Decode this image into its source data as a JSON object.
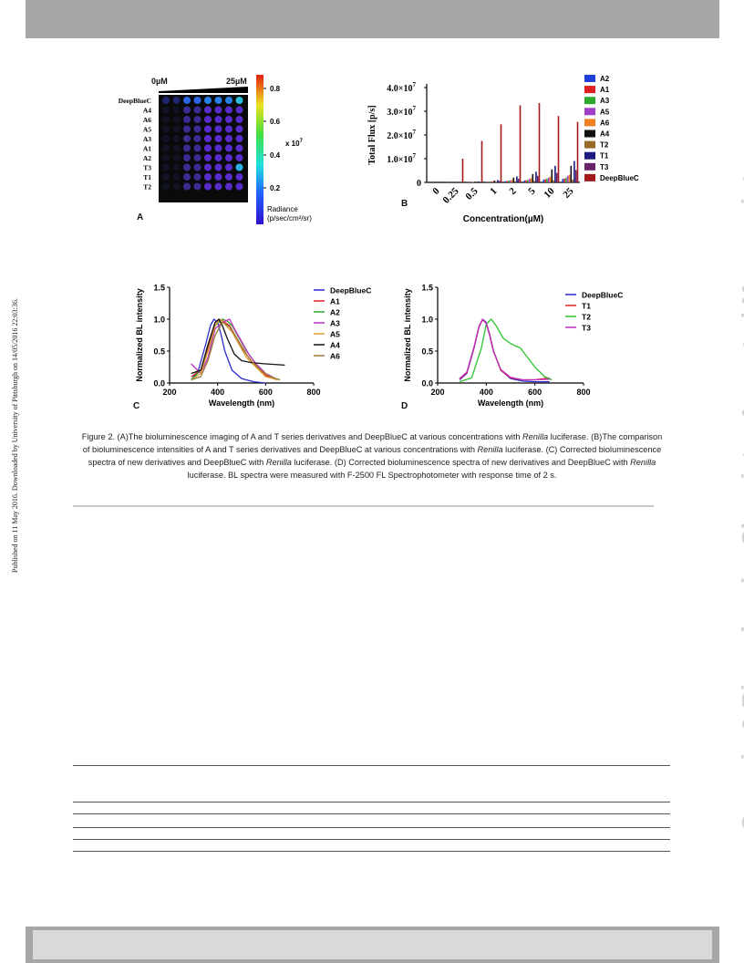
{
  "side_note": "Published on 11 May 2016. Downloaded by University of Pittsburgh on 14/05/2016 22:03:36.",
  "watermark": "Organic & Biomolecular Chemistry Accepted Manuscript",
  "figure": {
    "panel_a": {
      "label": "A",
      "conc_start": "0µM",
      "conc_end": "25µM",
      "rows": [
        "DeepBlueC",
        "A4",
        "A6",
        "A5",
        "A3",
        "A1",
        "A2",
        "T3",
        "T1",
        "T2"
      ],
      "colorbar_ticks": [
        "0.8",
        "0.6",
        "0.4",
        "0.2"
      ],
      "colorbar_exponent": "x 10",
      "colorbar_exponent_power": "7",
      "colorbar_label_1": "Radiance",
      "colorbar_label_2": "(p/sec/cm²/sr)"
    }
  },
  "chart_data": [
    {
      "panel": "B",
      "type": "bar",
      "ylabel": "Total Flux [p/s]",
      "xlabel": "Concentration(µM)",
      "ylim": [
        0,
        40000000
      ],
      "y_tick_labels": [
        "0",
        "1.0×10",
        "2.0×10",
        "3.0×10",
        "4.0×10"
      ],
      "y_tick_exponent": "7",
      "categories": [
        "0",
        "0.25",
        "0.5",
        "1",
        "2",
        "5",
        "10",
        "25"
      ],
      "series": [
        {
          "name": "A2",
          "color": "#1f3fd8",
          "values": [
            0,
            50000,
            100000,
            200000,
            500000,
            800000,
            1200000,
            1500000
          ]
        },
        {
          "name": "A1",
          "color": "#e02020",
          "values": [
            0,
            50000,
            100000,
            200000,
            600000,
            900000,
            1300000,
            1600000
          ]
        },
        {
          "name": "A3",
          "color": "#2ea82e",
          "values": [
            0,
            50000,
            100000,
            300000,
            700000,
            1000000,
            1600000,
            2000000
          ]
        },
        {
          "name": "A5",
          "color": "#a040c8",
          "values": [
            0,
            50000,
            150000,
            400000,
            900000,
            1500000,
            2000000,
            2800000
          ]
        },
        {
          "name": "A6",
          "color": "#f08020",
          "values": [
            0,
            50000,
            200000,
            500000,
            1100000,
            1800000,
            2500000,
            3200000
          ]
        },
        {
          "name": "A4",
          "color": "#111111",
          "values": [
            0,
            100000,
            300000,
            800000,
            2000000,
            3500000,
            5500000,
            7000000
          ]
        },
        {
          "name": "T2",
          "color": "#9a6a2a",
          "values": [
            0,
            50000,
            100000,
            200000,
            400000,
            700000,
            900000,
            1200000
          ]
        },
        {
          "name": "T1",
          "color": "#1a1a80",
          "values": [
            0,
            100000,
            400000,
            1000000,
            2500000,
            4500000,
            7000000,
            9000000
          ]
        },
        {
          "name": "T3",
          "color": "#6a1f6a",
          "values": [
            0,
            50000,
            200000,
            600000,
            1500000,
            2800000,
            4000000,
            5200000
          ]
        },
        {
          "name": "DeepBlueC",
          "color": "#a41a1a",
          "values": [
            0,
            10000000,
            17500000,
            24500000,
            32500000,
            33500000,
            28000000,
            25500000
          ]
        }
      ],
      "label": "B"
    },
    {
      "panel": "C",
      "type": "line",
      "ylabel": "Normalized BL intensity",
      "xlabel": "Wavelength (nm)",
      "xlim": [
        200,
        800
      ],
      "ylim": [
        0,
        1.5
      ],
      "x_ticks": [
        "200",
        "400",
        "600",
        "800"
      ],
      "y_ticks": [
        "0.0",
        "0.5",
        "1.0",
        "1.5"
      ],
      "series": [
        {
          "name": "DeepBlueC",
          "color": "#2b2bd0",
          "x": [
            290,
            320,
            350,
            370,
            385,
            400,
            415,
            430,
            460,
            500,
            550,
            600
          ],
          "y": [
            0.05,
            0.2,
            0.6,
            0.9,
            1.0,
            0.95,
            0.75,
            0.5,
            0.2,
            0.07,
            0.02,
            0.0
          ]
        },
        {
          "name": "A1",
          "color": "#e02020",
          "x": [
            290,
            330,
            360,
            390,
            410,
            430,
            450,
            480,
            520,
            560,
            600,
            650
          ],
          "y": [
            0.1,
            0.2,
            0.55,
            0.95,
            1.0,
            0.95,
            0.9,
            0.7,
            0.45,
            0.25,
            0.12,
            0.05
          ]
        },
        {
          "name": "A2",
          "color": "#2ea82e",
          "x": [
            290,
            330,
            360,
            390,
            420,
            440,
            460,
            490,
            520,
            560,
            600,
            650
          ],
          "y": [
            0.05,
            0.2,
            0.5,
            0.9,
            1.0,
            0.97,
            0.9,
            0.7,
            0.5,
            0.3,
            0.15,
            0.05
          ]
        },
        {
          "name": "A3",
          "color": "#c030c0",
          "x": [
            290,
            330,
            360,
            390,
            420,
            450,
            470,
            500,
            530,
            560,
            600,
            650
          ],
          "y": [
            0.3,
            0.15,
            0.4,
            0.85,
            0.95,
            1.0,
            0.85,
            0.65,
            0.45,
            0.3,
            0.15,
            0.05
          ]
        },
        {
          "name": "A5",
          "color": "#e0a030",
          "x": [
            290,
            330,
            360,
            390,
            410,
            430,
            460,
            490,
            520,
            560,
            600,
            650
          ],
          "y": [
            0.05,
            0.15,
            0.5,
            0.9,
            1.0,
            0.92,
            0.8,
            0.6,
            0.4,
            0.25,
            0.1,
            0.05
          ]
        },
        {
          "name": "A4",
          "color": "#111111",
          "x": [
            290,
            330,
            360,
            390,
            405,
            420,
            440,
            470,
            500,
            540,
            600,
            680
          ],
          "y": [
            0.15,
            0.2,
            0.6,
            0.95,
            1.0,
            0.9,
            0.7,
            0.45,
            0.35,
            0.32,
            0.3,
            0.28
          ]
        },
        {
          "name": "A6",
          "color": "#9a7a3a",
          "x": [
            290,
            330,
            360,
            390,
            420,
            450,
            480,
            510,
            540,
            580,
            620,
            660
          ],
          "y": [
            0.05,
            0.1,
            0.35,
            0.75,
            0.95,
            0.88,
            0.7,
            0.5,
            0.35,
            0.2,
            0.1,
            0.05
          ]
        }
      ],
      "label": "C"
    },
    {
      "panel": "D",
      "type": "line",
      "ylabel": "Normalized BL intensity",
      "xlabel": "Wavelength (nm)",
      "xlim": [
        200,
        800
      ],
      "ylim": [
        0,
        1.5
      ],
      "x_ticks": [
        "200",
        "400",
        "600",
        "800"
      ],
      "y_ticks": [
        "0.0",
        "0.5",
        "1.0",
        "1.5"
      ],
      "series": [
        {
          "name": "DeepBlueC",
          "color": "#2b2bd0",
          "x": [
            290,
            320,
            350,
            370,
            385,
            400,
            415,
            430,
            460,
            500,
            550,
            600,
            660
          ],
          "y": [
            0.05,
            0.15,
            0.55,
            0.88,
            1.0,
            0.95,
            0.75,
            0.5,
            0.2,
            0.07,
            0.03,
            0.02,
            0.02
          ]
        },
        {
          "name": "T1",
          "color": "#e02020",
          "x": [
            290,
            320,
            350,
            370,
            385,
            400,
            415,
            430,
            460,
            500,
            550,
            600,
            660
          ],
          "y": [
            0.06,
            0.16,
            0.56,
            0.88,
            0.99,
            0.94,
            0.74,
            0.5,
            0.2,
            0.08,
            0.05,
            0.05,
            0.08
          ]
        },
        {
          "name": "T2",
          "color": "#2ec42e",
          "x": [
            290,
            340,
            380,
            400,
            420,
            440,
            470,
            500,
            520,
            540,
            560,
            600,
            640,
            670
          ],
          "y": [
            0.02,
            0.08,
            0.55,
            0.92,
            1.0,
            0.9,
            0.7,
            0.62,
            0.58,
            0.55,
            0.45,
            0.25,
            0.1,
            0.05
          ]
        },
        {
          "name": "T3",
          "color": "#c030c0",
          "x": [
            290,
            320,
            350,
            370,
            385,
            400,
            415,
            430,
            460,
            500,
            550,
            600,
            660
          ],
          "y": [
            0.07,
            0.17,
            0.57,
            0.89,
            1.0,
            0.93,
            0.73,
            0.49,
            0.21,
            0.09,
            0.05,
            0.05,
            0.06
          ]
        }
      ],
      "label": "D"
    }
  ],
  "caption": {
    "part1": "Figure 2. (A)The bioluminescence imaging of A and T series derivatives and DeepBlueC at various concentrations with ",
    "renilla_1": "Renilla",
    "part2": " luciferase. (B)The comparison of bioluminescence intensities of A and T series derivatives and DeepBlueC at various concentrations with ",
    "renilla_2": "Renilla",
    "part3": " luciferase. (C) Corrected bioluminescence spectra of new derivatives and DeepBlueC with ",
    "renilla_3": "Renilla",
    "part4": " luciferase. (D) Corrected bioluminescence spectra of new derivatives and  DeepBlueC with ",
    "renilla_4": "Renilla",
    "part5": " luciferase. BL spectra were measured with F-2500 FL Spectrophotometer with response time of 2 s."
  }
}
